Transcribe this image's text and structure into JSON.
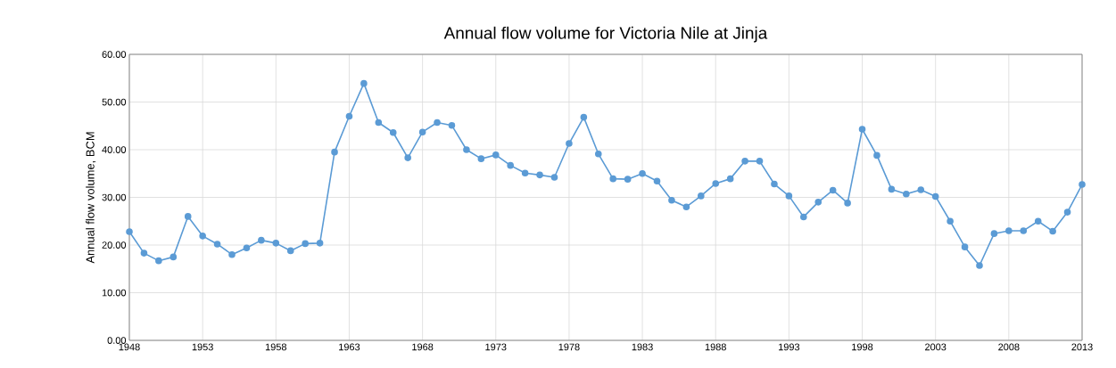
{
  "chart_data": {
    "type": "line",
    "title": "Annual flow volume for Victoria Nile at Jinja",
    "ylabel": "Annual flow volume, BCM",
    "x": [
      1948,
      1949,
      1950,
      1951,
      1952,
      1953,
      1954,
      1955,
      1956,
      1957,
      1958,
      1959,
      1960,
      1961,
      1962,
      1963,
      1964,
      1965,
      1966,
      1967,
      1968,
      1969,
      1970,
      1971,
      1972,
      1973,
      1974,
      1975,
      1976,
      1977,
      1978,
      1979,
      1980,
      1981,
      1982,
      1983,
      1984,
      1985,
      1986,
      1987,
      1988,
      1989,
      1990,
      1991,
      1992,
      1993,
      1994,
      1995,
      1996,
      1997,
      1998,
      1999,
      2000,
      2001,
      2002,
      2003,
      2004,
      2005,
      2006,
      2007,
      2008,
      2009,
      2010,
      2011,
      2012,
      2013
    ],
    "values": [
      22.8,
      18.3,
      16.7,
      17.5,
      26.0,
      21.9,
      20.2,
      18.0,
      19.4,
      21.0,
      20.4,
      18.8,
      20.3,
      20.4,
      39.5,
      47.0,
      53.9,
      45.7,
      43.6,
      38.3,
      43.7,
      45.7,
      45.1,
      40.0,
      38.1,
      38.9,
      36.7,
      35.1,
      34.7,
      34.2,
      41.3,
      46.8,
      39.1,
      33.9,
      33.8,
      35.0,
      33.4,
      29.4,
      28.0,
      30.3,
      32.9,
      33.9,
      37.6,
      37.6,
      32.8,
      30.3,
      25.9,
      29.0,
      31.5,
      28.8,
      44.3,
      38.8,
      31.7,
      30.7,
      31.6,
      30.2,
      25.0,
      19.6,
      15.7,
      22.4,
      23.0,
      23.0,
      25.0,
      22.9,
      26.9,
      32.7
    ],
    "color": "#5b9bd5",
    "marker": "circle",
    "line_style": "solid",
    "grid": true,
    "xlim": [
      1948,
      2013
    ],
    "xticks": [
      1948,
      1953,
      1958,
      1963,
      1968,
      1973,
      1978,
      1983,
      1988,
      1993,
      1998,
      2003,
      2008,
      2013
    ],
    "ylim": [
      0,
      60
    ],
    "yticks": [
      {
        "value": 0,
        "label": "0.00"
      },
      {
        "value": 10,
        "label": "10.00"
      },
      {
        "value": 20,
        "label": "20.00"
      },
      {
        "value": 30,
        "label": "30.00"
      },
      {
        "value": 40,
        "label": "40.00"
      },
      {
        "value": 50,
        "label": "50.00"
      },
      {
        "value": 60,
        "label": "60.00"
      }
    ]
  }
}
